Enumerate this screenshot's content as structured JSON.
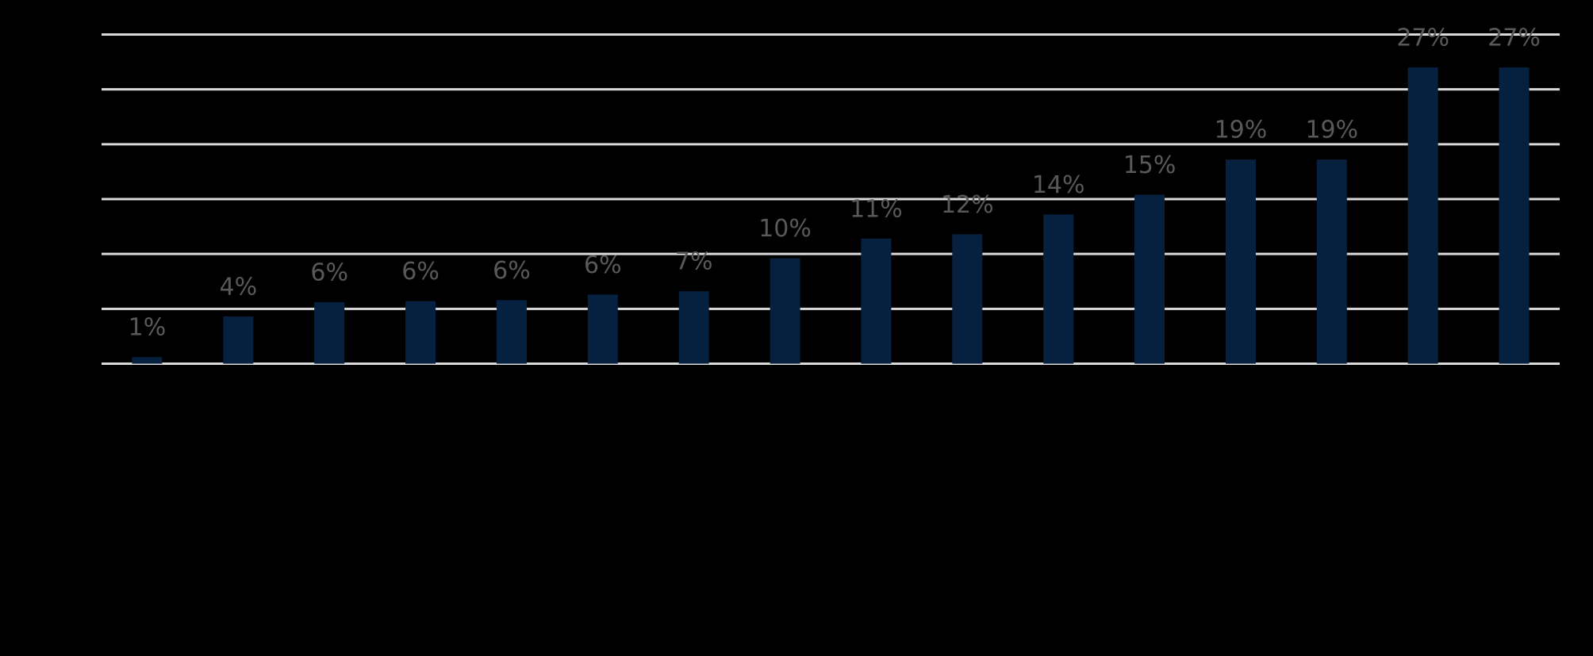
{
  "chart_data": {
    "type": "bar",
    "categories": [
      null,
      null,
      null,
      null,
      null,
      null,
      null,
      null,
      null,
      null,
      null,
      null,
      null,
      null,
      null,
      null
    ],
    "values": [
      0.6,
      4.3,
      5.6,
      5.7,
      5.8,
      6.3,
      6.6,
      9.6,
      11.4,
      11.8,
      13.6,
      15.4,
      18.6,
      18.6,
      27,
      27
    ],
    "value_labels": [
      "1%",
      "4%",
      "6%",
      "6%",
      "6%",
      "6%",
      "7%",
      "10%",
      "11%",
      "12%",
      "14%",
      "15%",
      "19%",
      "19%",
      "27%",
      "27%"
    ],
    "color": "#06213f",
    "ylim": [
      0,
      30
    ],
    "yticks": [
      0,
      5,
      10,
      15,
      20,
      25,
      30
    ],
    "grid": true
  }
}
